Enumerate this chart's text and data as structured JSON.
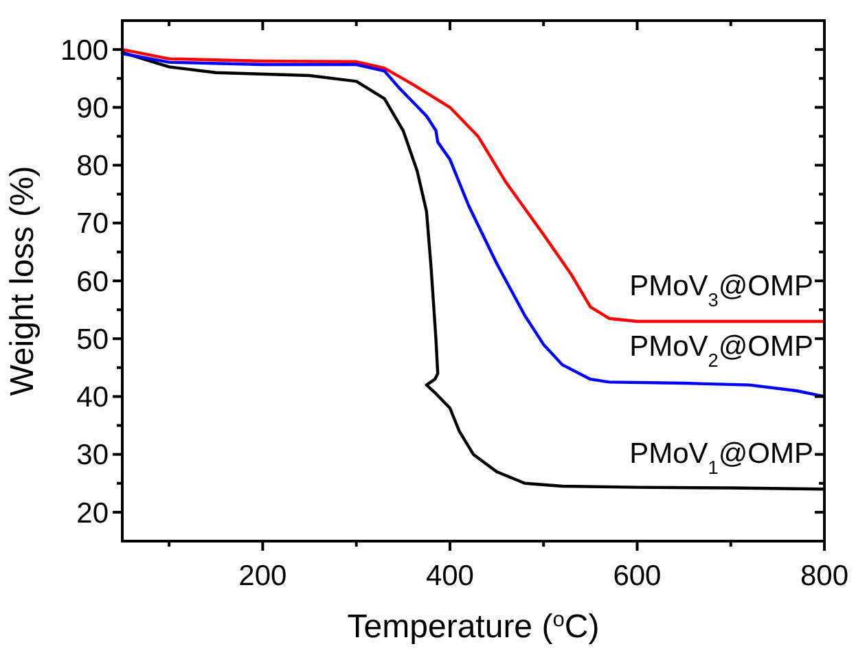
{
  "chart_data": {
    "type": "line",
    "xlabel": "Temperature ($^{o}$C)",
    "ylabel": "Weight loss (%)",
    "xlim": [
      50,
      800
    ],
    "ylim": [
      15,
      105
    ],
    "xticks": [
      {
        "value": 100,
        "label": null
      },
      200,
      {
        "value": 300,
        "label": null
      },
      400,
      {
        "value": 500,
        "label": null
      },
      600,
      {
        "value": 700,
        "label": null
      },
      800
    ],
    "yticks": [
      20,
      {
        "value": 25,
        "label": null
      },
      30,
      {
        "value": 35,
        "label": null
      },
      40,
      {
        "value": 45,
        "label": null
      },
      50,
      {
        "value": 55,
        "label": null
      },
      60,
      {
        "value": 65,
        "label": null
      },
      70,
      {
        "value": 75,
        "label": null
      },
      80,
      {
        "value": 85,
        "label": null
      },
      90,
      {
        "value": 95,
        "label": null
      },
      100
    ],
    "grid": false,
    "line_style": "solid",
    "series": [
      {
        "color": "#000000",
        "x": [
          50,
          100,
          150,
          250,
          300,
          330,
          350,
          365,
          375,
          380,
          385,
          387,
          384,
          375,
          385,
          400,
          410,
          425,
          450,
          480,
          520,
          600,
          700,
          800
        ],
        "values": [
          99.5,
          97,
          96,
          95.5,
          94.5,
          91.5,
          86,
          79,
          72,
          62,
          50,
          44,
          43,
          42,
          40.5,
          38,
          34,
          30,
          27,
          25,
          24.5,
          24.3,
          24.2,
          24
        ]
      },
      {
        "color": "#ff0000",
        "x": [
          50,
          100,
          200,
          300,
          330,
          360,
          400,
          430,
          460,
          500,
          530,
          550,
          570,
          600,
          700,
          800
        ],
        "values": [
          100,
          98.4,
          98,
          97.9,
          96.8,
          94,
          90,
          85,
          77,
          68,
          61,
          55.5,
          53.5,
          53,
          53,
          53
        ]
      },
      {
        "color": "#0000ff",
        "x": [
          50,
          100,
          200,
          300,
          330,
          345,
          360,
          375,
          385,
          387,
          400,
          420,
          450,
          480,
          500,
          520,
          550,
          570,
          650,
          720,
          770,
          800
        ],
        "values": [
          99.3,
          97.8,
          97.4,
          97.4,
          96.3,
          93.5,
          91,
          88.5,
          86,
          84,
          81,
          73,
          63,
          54,
          49,
          45.5,
          43,
          42.5,
          42.3,
          42,
          41,
          40
        ]
      }
    ],
    "annotations": [
      "PMoV$_{3}$@OMP",
      "PMoV$_{2}$@OMP",
      "PMoV$_{1}$@OMP"
    ]
  }
}
